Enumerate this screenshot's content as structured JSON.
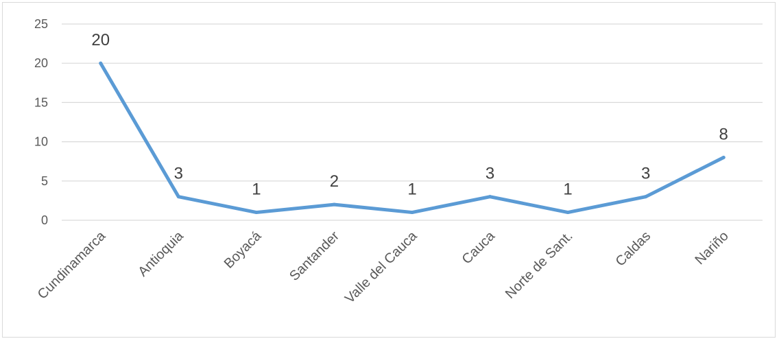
{
  "chart_data": {
    "type": "line",
    "categories": [
      "Cundinamarca",
      "Antioquia",
      "Boyacá",
      "Santander",
      "Valle del Cauca",
      "Cauca",
      "Norte de Sant.",
      "Caldas",
      "Nariño"
    ],
    "series": [
      {
        "values": [
          20,
          3,
          1,
          2,
          1,
          3,
          1,
          3,
          8
        ]
      }
    ],
    "ylim": [
      0,
      25
    ],
    "yticks": [
      "0",
      "5",
      "10",
      "15",
      "20",
      "25"
    ],
    "grid": true,
    "data_labels": true,
    "line_color": "#5b9bd5",
    "grid_color": "#d9d9d9"
  }
}
